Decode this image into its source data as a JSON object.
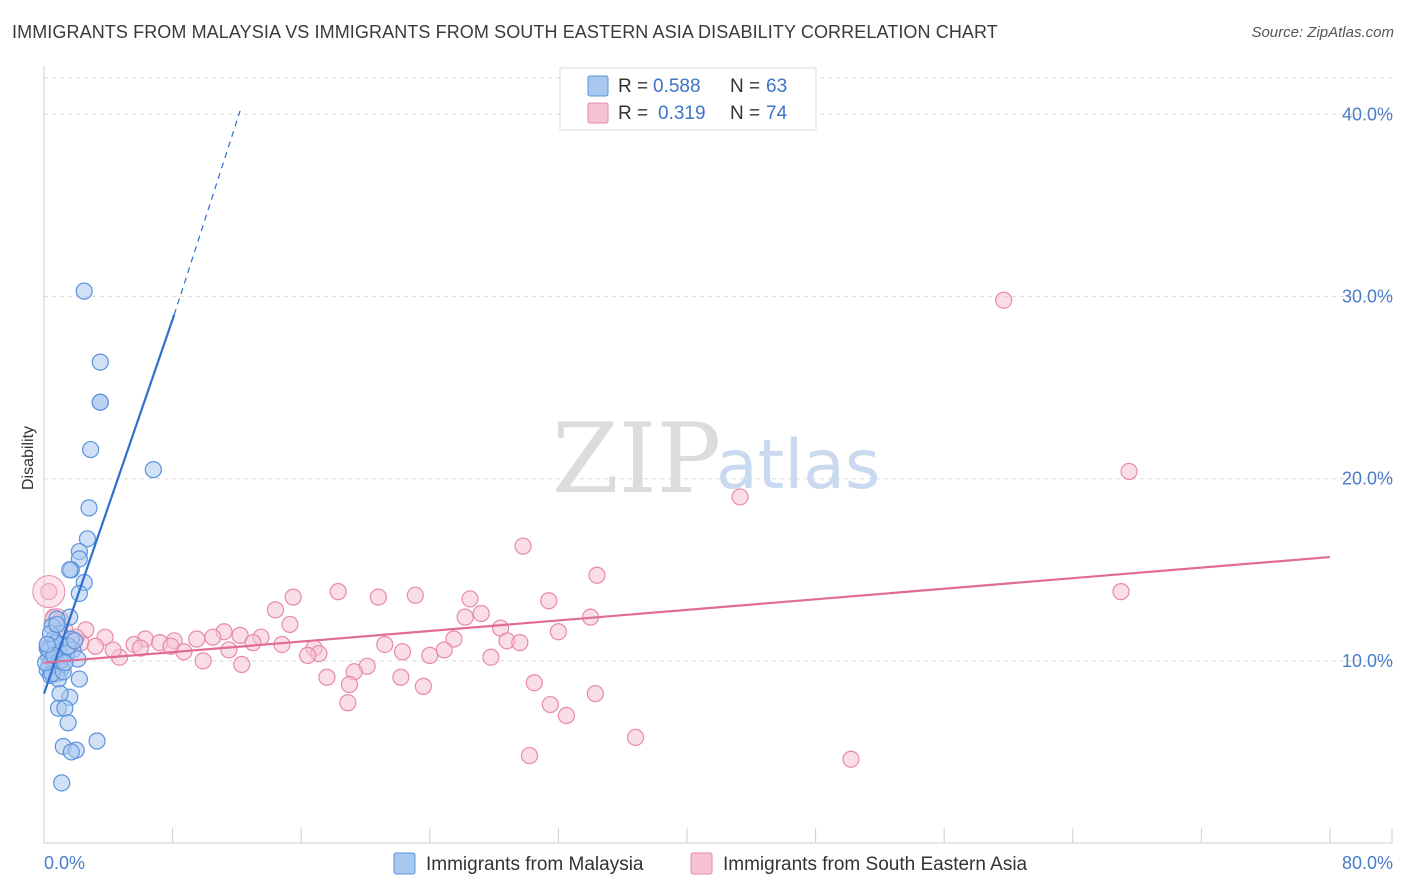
{
  "title": "IMMIGRANTS FROM MALAYSIA VS IMMIGRANTS FROM SOUTH EASTERN ASIA DISABILITY CORRELATION CHART",
  "source": "Source: ZipAtlas.com",
  "watermark": {
    "part1": "ZIP",
    "part2": "atlas"
  },
  "colors": {
    "blue_fill": "#a9c8f0",
    "blue_stroke": "#5b93dd",
    "blue_line": "#2f6fd0",
    "pink_fill": "#f6c3d3",
    "pink_stroke": "#e88aa8",
    "pink_line": "#e06b97",
    "grid": "#d9d9d9",
    "axis_text": "#4a7cc9"
  },
  "chart_data": {
    "type": "scatter",
    "ylabel": "Disability",
    "xlim": [
      0,
      80
    ],
    "ylim": [
      0,
      42
    ],
    "x_tick_labels": [
      "0.0%",
      "80.0%"
    ],
    "y_ticks": [
      10,
      20,
      30,
      40
    ],
    "y_tick_labels": [
      "10.0%",
      "20.0%",
      "30.0%",
      "40.0%"
    ],
    "grid": true,
    "legend": {
      "position": "top-center",
      "entries": [
        {
          "r_label": "R =",
          "r": "0.588",
          "n_label": "N =",
          "n": "63"
        },
        {
          "r_label": "R =",
          "r": "0.319",
          "n_label": "N =",
          "n": "74"
        }
      ]
    },
    "series": [
      {
        "name": "Immigrants from Malaysia",
        "color": "blue",
        "trend": {
          "x0": 0,
          "y0": 8.2,
          "x1": 8.1,
          "y1": 29.0,
          "dash_to_x": 12.2,
          "dash_to_y": 40.2
        },
        "points": [
          [
            2.5,
            30.3
          ],
          [
            3.5,
            26.4
          ],
          [
            3.5,
            24.2
          ],
          [
            3.5,
            24.2
          ],
          [
            2.9,
            21.6
          ],
          [
            6.8,
            20.5
          ],
          [
            2.8,
            18.4
          ],
          [
            2.7,
            16.7
          ],
          [
            2.2,
            16.0
          ],
          [
            2.2,
            15.6
          ],
          [
            1.7,
            15.0
          ],
          [
            1.6,
            15.0
          ],
          [
            2.5,
            14.3
          ],
          [
            2.2,
            13.7
          ],
          [
            1.6,
            12.4
          ],
          [
            0.8,
            12.3
          ],
          [
            0.5,
            11.9
          ],
          [
            1.0,
            11.5
          ],
          [
            0.6,
            11.2
          ],
          [
            1.7,
            11.2
          ],
          [
            1.1,
            10.9
          ],
          [
            0.5,
            10.8
          ],
          [
            0.2,
            10.7
          ],
          [
            1.8,
            10.6
          ],
          [
            0.9,
            10.5
          ],
          [
            0.7,
            10.4
          ],
          [
            1.4,
            10.4
          ],
          [
            0.3,
            10.2
          ],
          [
            2.1,
            10.1
          ],
          [
            0.8,
            10.0
          ],
          [
            0.4,
            9.9
          ],
          [
            0.9,
            9.8
          ],
          [
            0.3,
            9.7
          ],
          [
            1.1,
            9.6
          ],
          [
            0.6,
            9.5
          ],
          [
            0.2,
            9.5
          ],
          [
            0.8,
            9.3
          ],
          [
            0.4,
            9.2
          ],
          [
            2.2,
            9.0
          ],
          [
            0.9,
            9.0
          ],
          [
            0.5,
            9.3
          ],
          [
            1.2,
            9.4
          ],
          [
            0.1,
            9.9
          ],
          [
            0.3,
            10.6
          ],
          [
            1.5,
            10.8
          ],
          [
            1.0,
            10.0
          ],
          [
            0.7,
            11.0
          ],
          [
            0.4,
            11.5
          ],
          [
            1.6,
            8.0
          ],
          [
            1.0,
            8.2
          ],
          [
            0.9,
            7.4
          ],
          [
            1.3,
            7.4
          ],
          [
            1.5,
            6.6
          ],
          [
            3.3,
            5.6
          ],
          [
            1.2,
            5.3
          ],
          [
            2.0,
            5.1
          ],
          [
            1.7,
            5.0
          ],
          [
            1.1,
            3.3
          ],
          [
            0.6,
            10.3
          ],
          [
            1.3,
            9.9
          ],
          [
            0.2,
            10.9
          ],
          [
            0.8,
            12.0
          ],
          [
            1.9,
            11.1
          ]
        ]
      },
      {
        "name": "Immigrants from South Eastern Asia",
        "color": "pink",
        "trend": {
          "x0": 0,
          "y0": 9.9,
          "x1": 80,
          "y1": 15.7
        },
        "points": [
          [
            59.7,
            29.8
          ],
          [
            67.5,
            20.4
          ],
          [
            43.3,
            19.0
          ],
          [
            29.8,
            16.3
          ],
          [
            34.4,
            14.7
          ],
          [
            67.0,
            13.8
          ],
          [
            18.3,
            13.8
          ],
          [
            23.1,
            13.6
          ],
          [
            20.8,
            13.5
          ],
          [
            26.5,
            13.4
          ],
          [
            15.5,
            13.5
          ],
          [
            31.4,
            13.3
          ],
          [
            14.4,
            12.8
          ],
          [
            27.2,
            12.6
          ],
          [
            26.2,
            12.4
          ],
          [
            34.0,
            12.4
          ],
          [
            15.3,
            12.0
          ],
          [
            28.4,
            11.8
          ],
          [
            32.0,
            11.6
          ],
          [
            2.6,
            11.7
          ],
          [
            11.2,
            11.6
          ],
          [
            12.2,
            11.4
          ],
          [
            10.5,
            11.3
          ],
          [
            13.5,
            11.3
          ],
          [
            3.8,
            11.3
          ],
          [
            25.5,
            11.2
          ],
          [
            9.5,
            11.2
          ],
          [
            6.3,
            11.2
          ],
          [
            8.1,
            11.1
          ],
          [
            28.8,
            11.1
          ],
          [
            7.2,
            11.0
          ],
          [
            13.0,
            11.0
          ],
          [
            2.3,
            11.0
          ],
          [
            29.6,
            11.0
          ],
          [
            14.8,
            10.9
          ],
          [
            21.2,
            10.9
          ],
          [
            5.6,
            10.9
          ],
          [
            7.9,
            10.8
          ],
          [
            3.2,
            10.8
          ],
          [
            16.8,
            10.7
          ],
          [
            11.5,
            10.6
          ],
          [
            24.9,
            10.6
          ],
          [
            22.3,
            10.5
          ],
          [
            8.7,
            10.5
          ],
          [
            17.1,
            10.4
          ],
          [
            16.4,
            10.3
          ],
          [
            24.0,
            10.3
          ],
          [
            27.8,
            10.2
          ],
          [
            4.7,
            10.2
          ],
          [
            9.9,
            10.0
          ],
          [
            12.3,
            9.8
          ],
          [
            20.1,
            9.7
          ],
          [
            19.3,
            9.4
          ],
          [
            17.6,
            9.1
          ],
          [
            22.2,
            9.1
          ],
          [
            19.0,
            8.7
          ],
          [
            23.6,
            8.6
          ],
          [
            30.5,
            8.8
          ],
          [
            34.3,
            8.2
          ],
          [
            31.5,
            7.6
          ],
          [
            32.5,
            7.0
          ],
          [
            18.9,
            7.7
          ],
          [
            36.8,
            5.8
          ],
          [
            30.2,
            4.8
          ],
          [
            50.2,
            4.6
          ],
          [
            0.3,
            13.8
          ],
          [
            0.6,
            12.4
          ],
          [
            1.3,
            11.7
          ],
          [
            2.0,
            11.3
          ],
          [
            0.8,
            11.0
          ],
          [
            1.6,
            10.8
          ],
          [
            4.3,
            10.6
          ],
          [
            6.0,
            10.7
          ],
          [
            1.0,
            12.2
          ]
        ]
      }
    ]
  }
}
